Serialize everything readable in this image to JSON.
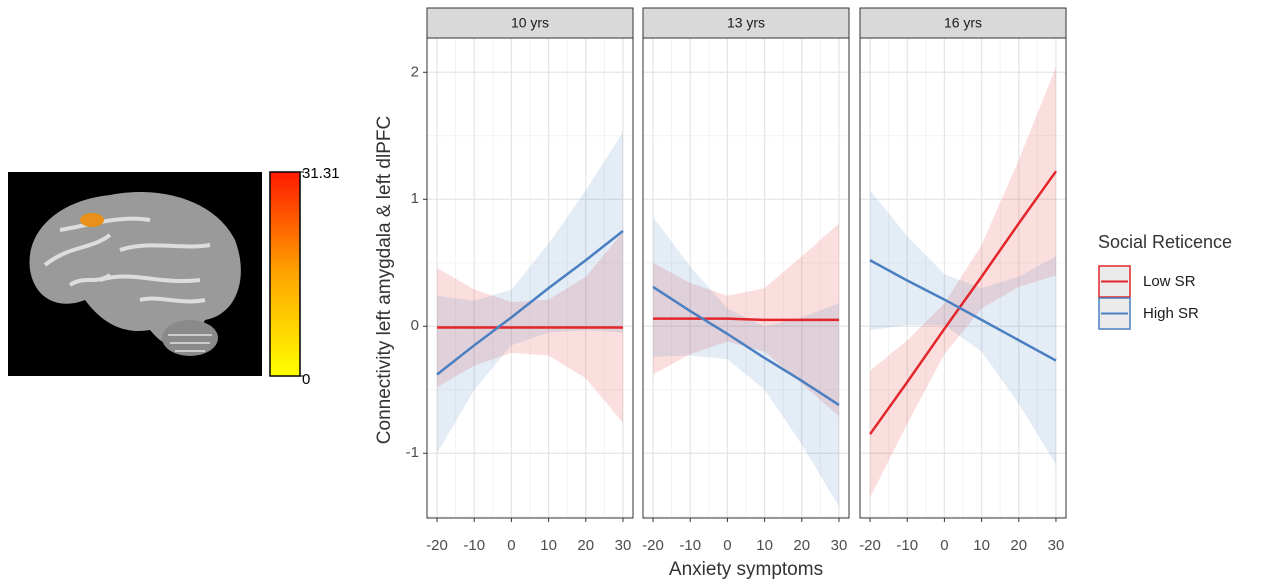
{
  "chart_data": {
    "type": "line",
    "y_label": "Connectivity left amygdala & left dlPFC",
    "x_label": "Anxiety symptoms",
    "x": [
      -20,
      -10,
      0,
      10,
      20,
      30
    ],
    "xlim": [
      -22.7,
      32.7
    ],
    "xticks": [
      -20,
      -10,
      0,
      10,
      20,
      30
    ],
    "ylim": [
      -1.51,
      2.27
    ],
    "yticks": [
      -1,
      0,
      1,
      2
    ],
    "grid": true,
    "legend": {
      "title": "Social Reticence",
      "position": "right"
    },
    "series": [
      {
        "name": "Low SR",
        "color": "#e3262b"
      },
      {
        "name": "High SR",
        "color": "#4a7fc1"
      }
    ],
    "facets": [
      {
        "title": "10 yrs",
        "series": [
          {
            "values": [
              -0.01,
              -0.01,
              -0.01,
              -0.01,
              -0.01,
              -0.01
            ],
            "lower": [
              -0.48,
              -0.31,
              -0.21,
              -0.23,
              -0.41,
              -0.76
            ],
            "upper": [
              0.46,
              0.29,
              0.19,
              0.21,
              0.39,
              0.74
            ]
          },
          {
            "values": [
              -0.38,
              -0.15,
              0.07,
              0.3,
              0.52,
              0.75
            ],
            "lower": [
              -1.0,
              -0.5,
              -0.15,
              -0.05,
              -0.03,
              -0.05
            ],
            "upper": [
              0.24,
              0.2,
              0.29,
              0.65,
              1.07,
              1.53
            ]
          }
        ]
      },
      {
        "title": "13 yrs",
        "series": [
          {
            "values": [
              0.06,
              0.06,
              0.06,
              0.05,
              0.05,
              0.05
            ],
            "lower": [
              -0.38,
              -0.22,
              -0.12,
              -0.2,
              -0.45,
              -0.71
            ],
            "upper": [
              0.5,
              0.34,
              0.24,
              0.3,
              0.55,
              0.81
            ]
          },
          {
            "values": [
              0.31,
              0.12,
              -0.06,
              -0.25,
              -0.43,
              -0.62
            ],
            "lower": [
              -0.24,
              -0.23,
              -0.26,
              -0.5,
              -0.93,
              -1.42
            ],
            "upper": [
              0.86,
              0.47,
              0.14,
              0.0,
              0.07,
              0.18
            ]
          }
        ]
      },
      {
        "title": "16 yrs",
        "series": [
          {
            "values": [
              -0.85,
              -0.44,
              -0.02,
              0.39,
              0.81,
              1.22
            ],
            "lower": [
              -1.35,
              -0.77,
              -0.22,
              0.14,
              0.31,
              0.4
            ],
            "upper": [
              -0.35,
              -0.11,
              0.18,
              0.64,
              1.31,
              2.04
            ]
          },
          {
            "values": [
              0.52,
              0.36,
              0.21,
              0.05,
              -0.11,
              -0.27
            ],
            "lower": [
              -0.03,
              0.01,
              0.01,
              -0.2,
              -0.61,
              -1.09
            ],
            "upper": [
              1.07,
              0.71,
              0.41,
              0.3,
              0.39,
              0.55
            ]
          }
        ]
      }
    ]
  },
  "colorbar": {
    "lim": [
      0,
      31.31
    ],
    "ticks": [
      0,
      31.31
    ]
  }
}
